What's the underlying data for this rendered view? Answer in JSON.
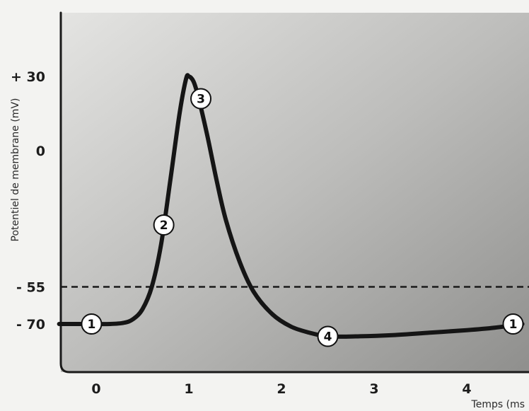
{
  "chart_data": {
    "type": "line",
    "title": "",
    "xlabel": "Temps (ms",
    "ylabel": "Potentiel de membrane (mV)",
    "xlim": [
      -0.4,
      4.6
    ],
    "ylim": [
      -80,
      40
    ],
    "x_ticks": [
      {
        "value": 0,
        "label": "0"
      },
      {
        "value": 1,
        "label": "1"
      },
      {
        "value": 2,
        "label": "2"
      },
      {
        "value": 3,
        "label": "3"
      },
      {
        "value": 4,
        "label": "4"
      }
    ],
    "y_ticks": [
      {
        "value": 30,
        "label": "+ 30"
      },
      {
        "value": 0,
        "label": "0"
      },
      {
        "value": -55,
        "label": "- 55"
      },
      {
        "value": -70,
        "label": "- 70"
      }
    ],
    "threshold": {
      "value": -55,
      "style": "dashed"
    },
    "series": [
      {
        "color": "#151515",
        "x": [
          -0.4,
          -0.1,
          0.15,
          0.3,
          0.4,
          0.5,
          0.6,
          0.7,
          0.8,
          0.9,
          0.97,
          1.0,
          1.05,
          1.1,
          1.2,
          1.3,
          1.4,
          1.55,
          1.7,
          1.9,
          2.1,
          2.3,
          2.5,
          2.8,
          3.2,
          3.6,
          4.0,
          4.3,
          4.6
        ],
        "y": [
          -70,
          -70,
          -70,
          -69.5,
          -68,
          -64,
          -55,
          -38,
          -12,
          15,
          29,
          30,
          28,
          22,
          6,
          -12,
          -28,
          -45,
          -57,
          -66,
          -71,
          -73.5,
          -75,
          -75,
          -74.5,
          -73.5,
          -72.5,
          -71.5,
          -70
        ]
      }
    ],
    "annotations": [
      {
        "label": "1",
        "x": -0.05,
        "y": -70
      },
      {
        "label": "2",
        "x": 0.73,
        "y": -30
      },
      {
        "label": "3",
        "x": 1.13,
        "y": 21
      },
      {
        "label": "4",
        "x": 2.5,
        "y": -75
      },
      {
        "label": "1",
        "x": 4.5,
        "y": -70
      }
    ],
    "grid": false,
    "legend": "none"
  }
}
